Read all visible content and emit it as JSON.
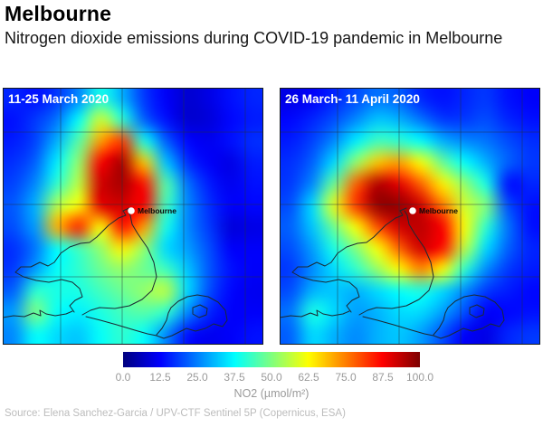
{
  "header": {
    "title": "Melbourne",
    "subtitle": "Nitrogen dioxide emissions during COVID-19 pandemic in Melbourne"
  },
  "colors": {
    "panel_label": "#ffffff",
    "tick_label": "#9a9a9a",
    "source_text": "#bcbcbc",
    "coastline": "#1b2a33"
  },
  "chart_data": {
    "type": "heatmap",
    "colormap": "jet",
    "value_range": [
      0,
      100
    ],
    "grid_lines": true,
    "panels": [
      {
        "label": "11-25 March 2020",
        "marker": {
          "label": "Melbourne"
        },
        "grid": [
          [
            16,
            14,
            18,
            26,
            40,
            30,
            18,
            12,
            8,
            10,
            14,
            16
          ],
          [
            14,
            18,
            24,
            38,
            58,
            42,
            22,
            14,
            8,
            9,
            13,
            15
          ],
          [
            15,
            19,
            30,
            46,
            72,
            82,
            40,
            22,
            13,
            11,
            14,
            17
          ],
          [
            17,
            22,
            36,
            52,
            88,
            96,
            68,
            32,
            17,
            12,
            10,
            15
          ],
          [
            19,
            26,
            42,
            56,
            92,
            96,
            86,
            46,
            24,
            15,
            11,
            14
          ],
          [
            21,
            30,
            55,
            62,
            90,
            92,
            88,
            44,
            26,
            17,
            12,
            13
          ],
          [
            20,
            28,
            70,
            84,
            62,
            86,
            72,
            40,
            26,
            18,
            9,
            10
          ],
          [
            17,
            24,
            38,
            44,
            52,
            64,
            52,
            34,
            28,
            20,
            12,
            12
          ],
          [
            18,
            28,
            38,
            42,
            48,
            52,
            48,
            44,
            32,
            21,
            14,
            12
          ],
          [
            22,
            42,
            40,
            40,
            44,
            48,
            52,
            56,
            34,
            20,
            13,
            11
          ],
          [
            28,
            50,
            38,
            36,
            40,
            44,
            46,
            42,
            26,
            16,
            12,
            12
          ],
          [
            26,
            38,
            34,
            32,
            38,
            42,
            38,
            26,
            14,
            11,
            12,
            14
          ]
        ]
      },
      {
        "label": "26 March- 11 April 2020",
        "marker": {
          "label": "Melbourne"
        },
        "grid": [
          [
            10,
            12,
            16,
            20,
            24,
            22,
            16,
            14,
            16,
            18,
            14,
            12
          ],
          [
            13,
            16,
            20,
            26,
            32,
            30,
            24,
            18,
            18,
            20,
            16,
            14
          ],
          [
            15,
            19,
            26,
            36,
            44,
            42,
            38,
            30,
            26,
            24,
            20,
            17
          ],
          [
            17,
            22,
            34,
            52,
            68,
            72,
            62,
            48,
            38,
            30,
            22,
            18
          ],
          [
            18,
            26,
            48,
            78,
            95,
            90,
            78,
            64,
            52,
            40,
            14,
            16
          ],
          [
            20,
            34,
            60,
            82,
            98,
            98,
            92,
            76,
            58,
            50,
            20,
            14
          ],
          [
            22,
            32,
            48,
            62,
            80,
            92,
            94,
            88,
            62,
            42,
            24,
            14
          ],
          [
            20,
            28,
            40,
            50,
            62,
            78,
            92,
            86,
            56,
            34,
            22,
            16
          ],
          [
            18,
            26,
            34,
            42,
            52,
            62,
            74,
            62,
            42,
            26,
            18,
            15
          ],
          [
            20,
            30,
            32,
            30,
            34,
            38,
            40,
            34,
            26,
            18,
            15,
            13
          ],
          [
            24,
            40,
            34,
            28,
            30,
            34,
            34,
            28,
            20,
            12,
            13,
            14
          ],
          [
            22,
            34,
            30,
            26,
            30,
            32,
            28,
            20,
            12,
            10,
            16,
            18
          ]
        ]
      }
    ],
    "colorbar": {
      "ticks": [
        "0.0",
        "12.5",
        "25.0",
        "37.5",
        "50.0",
        "62.5",
        "75.0",
        "87.5",
        "100.0"
      ],
      "label": "NO2 (µmol/m²)",
      "min": 0,
      "max": 100
    }
  },
  "footer": {
    "source": "Source: Elena Sanchez-Garcia / UPV-CTF Sentinel 5P (Copernicus, ESA)"
  }
}
